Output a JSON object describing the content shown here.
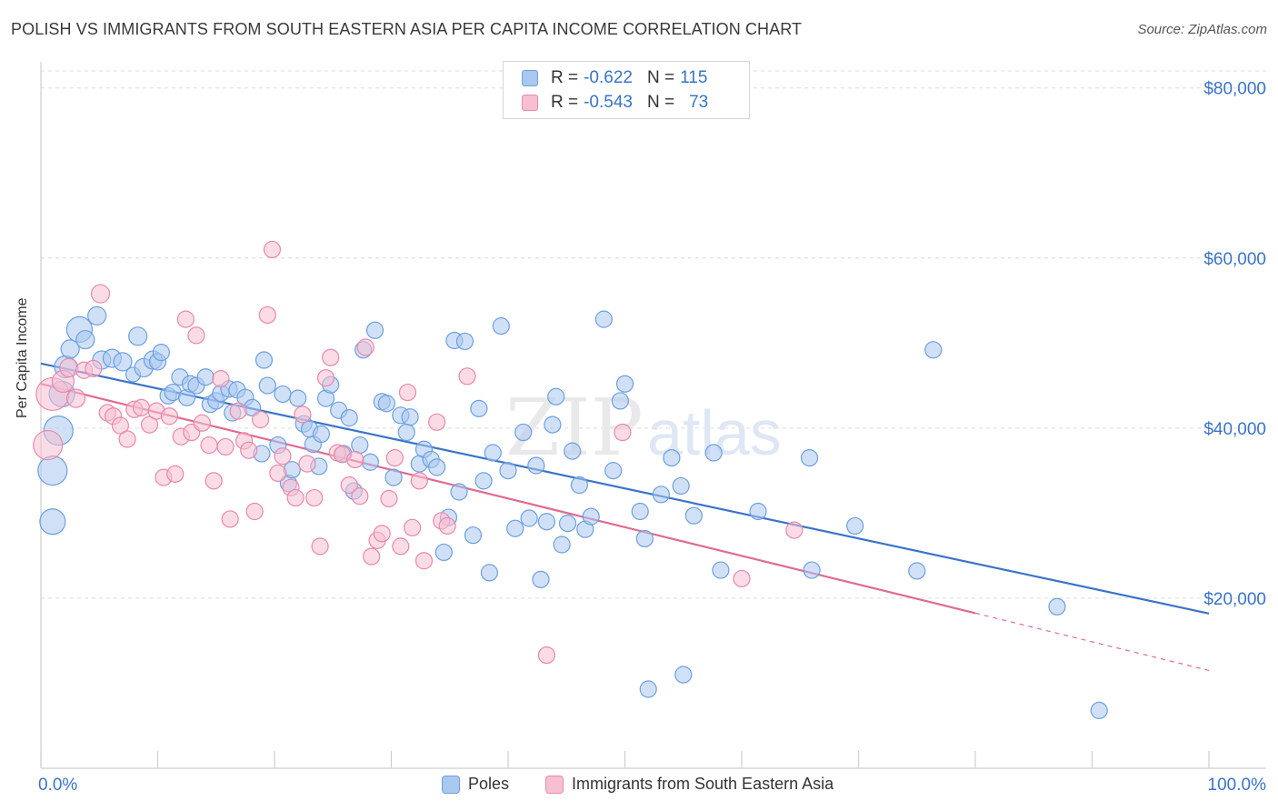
{
  "header": {
    "title": "POLISH VS IMMIGRANTS FROM SOUTH EASTERN ASIA PER CAPITA INCOME CORRELATION CHART",
    "source": "Source: ZipAtlas.com"
  },
  "watermark": {
    "text_a": "ZIP",
    "text_b": "atlas"
  },
  "legend_top": {
    "rows": [
      {
        "r_label": "R =",
        "r_value": "-0.622",
        "n_label": "N =",
        "n_value": "115",
        "color": "#a9c8f0",
        "border": "#6e9fe0"
      },
      {
        "r_label": "R =",
        "r_value": "-0.543",
        "n_label": "N =",
        "n_value": "73",
        "color": "#f7bfd1",
        "border": "#e889a9"
      }
    ]
  },
  "legend_bottom": {
    "items": [
      {
        "label": "Poles",
        "color": "#a9c8f0",
        "border": "#6e9fe0"
      },
      {
        "label": "Immigrants from South Eastern Asia",
        "color": "#f7bfd1",
        "border": "#e889a9"
      }
    ]
  },
  "chart_data": {
    "type": "scatter",
    "title": "POLISH VS IMMIGRANTS FROM SOUTH EASTERN ASIA PER CAPITA INCOME CORRELATION CHART",
    "xlabel": "",
    "ylabel": "Per Capita Income",
    "x_tick_labels": [
      "0.0%",
      "100.0%"
    ],
    "y_tick_labels": [
      "$20,000",
      "$40,000",
      "$60,000",
      "$80,000"
    ],
    "y_ticks": [
      20000,
      40000,
      60000,
      80000
    ],
    "xlim": [
      0,
      100
    ],
    "ylim": [
      0,
      82000
    ],
    "grid": "horizontal dashed",
    "legend": "top-center",
    "colors": {
      "poles": "#3a74c8",
      "asia": "#e06a93",
      "axis_label": "#3a74c8"
    },
    "series": [
      {
        "name": "Poles",
        "color": "#6e9fe0",
        "trend": {
          "x0": 0,
          "y0": 47600,
          "x1": 100,
          "y1": 18200,
          "dashed_from": null
        },
        "points": [
          [
            1.0,
            29000,
            14
          ],
          [
            1.0,
            35000,
            16
          ],
          [
            1.5,
            39700,
            16
          ],
          [
            1.8,
            44000,
            14
          ],
          [
            2.1,
            47200,
            12
          ],
          [
            2.5,
            49300,
            10
          ],
          [
            3.3,
            51600,
            14
          ],
          [
            3.8,
            50400,
            10
          ],
          [
            4.8,
            53200,
            10
          ],
          [
            5.2,
            48000,
            10
          ],
          [
            6.1,
            48200,
            10
          ],
          [
            7.0,
            47800,
            10
          ],
          [
            7.9,
            46300,
            8
          ],
          [
            8.3,
            50800,
            10
          ],
          [
            8.8,
            47100,
            10
          ],
          [
            9.6,
            48000,
            10
          ],
          [
            10.0,
            47800,
            9
          ],
          [
            10.3,
            48900,
            9
          ],
          [
            10.9,
            43800,
            9
          ],
          [
            11.3,
            44200,
            9
          ],
          [
            11.9,
            46000,
            9
          ],
          [
            12.5,
            43600,
            9
          ],
          [
            12.8,
            45200,
            9
          ],
          [
            13.3,
            45000,
            9
          ],
          [
            14.1,
            46000,
            9
          ],
          [
            14.5,
            42800,
            9
          ],
          [
            15.0,
            43200,
            9
          ],
          [
            15.4,
            44100,
            9
          ],
          [
            16.1,
            44600,
            9
          ],
          [
            16.4,
            41800,
            9
          ],
          [
            16.8,
            44500,
            9
          ],
          [
            17.5,
            43600,
            9
          ],
          [
            18.1,
            42400,
            9
          ],
          [
            18.9,
            37000,
            9
          ],
          [
            19.1,
            48000,
            9
          ],
          [
            19.4,
            45000,
            9
          ],
          [
            20.3,
            38000,
            9
          ],
          [
            20.7,
            44000,
            9
          ],
          [
            21.2,
            33500,
            9
          ],
          [
            21.5,
            35100,
            9
          ],
          [
            22.0,
            43500,
            9
          ],
          [
            22.5,
            40500,
            9
          ],
          [
            23.0,
            39900,
            9
          ],
          [
            23.3,
            38100,
            9
          ],
          [
            23.8,
            35500,
            9
          ],
          [
            24.0,
            39300,
            9
          ],
          [
            24.4,
            43500,
            9
          ],
          [
            24.8,
            45100,
            9
          ],
          [
            25.5,
            42100,
            9
          ],
          [
            25.9,
            37000,
            9
          ],
          [
            26.4,
            41200,
            9
          ],
          [
            26.8,
            32600,
            9
          ],
          [
            27.3,
            38000,
            9
          ],
          [
            27.6,
            49200,
            9
          ],
          [
            28.2,
            36000,
            9
          ],
          [
            28.6,
            51500,
            9
          ],
          [
            29.2,
            43100,
            9
          ],
          [
            29.6,
            42900,
            9
          ],
          [
            30.2,
            34200,
            9
          ],
          [
            30.8,
            41500,
            9
          ],
          [
            31.3,
            39500,
            9
          ],
          [
            31.6,
            41300,
            9
          ],
          [
            32.4,
            35800,
            9
          ],
          [
            32.8,
            37500,
            9
          ],
          [
            33.4,
            36300,
            9
          ],
          [
            33.9,
            35400,
            9
          ],
          [
            34.5,
            25400,
            9
          ],
          [
            34.9,
            29500,
            9
          ],
          [
            35.4,
            50300,
            9
          ],
          [
            35.8,
            32500,
            9
          ],
          [
            36.3,
            50200,
            9
          ],
          [
            37.0,
            27400,
            9
          ],
          [
            37.5,
            42300,
            9
          ],
          [
            37.9,
            33800,
            9
          ],
          [
            38.4,
            23000,
            9
          ],
          [
            38.7,
            37100,
            9
          ],
          [
            39.4,
            52000,
            9
          ],
          [
            40.0,
            35000,
            9
          ],
          [
            40.6,
            28200,
            9
          ],
          [
            41.3,
            39500,
            9
          ],
          [
            41.8,
            29400,
            9
          ],
          [
            42.4,
            35600,
            9
          ],
          [
            42.8,
            22200,
            9
          ],
          [
            43.3,
            29000,
            9
          ],
          [
            43.8,
            40400,
            9
          ],
          [
            44.1,
            43700,
            9
          ],
          [
            44.6,
            26300,
            9
          ],
          [
            45.1,
            28800,
            9
          ],
          [
            45.5,
            37300,
            9
          ],
          [
            46.1,
            33300,
            9
          ],
          [
            46.6,
            28100,
            9
          ],
          [
            47.1,
            29600,
            9
          ],
          [
            48.2,
            52800,
            9
          ],
          [
            49.0,
            35000,
            9
          ],
          [
            49.6,
            43200,
            9
          ],
          [
            50.0,
            45200,
            9
          ],
          [
            51.3,
            30200,
            9
          ],
          [
            51.7,
            27000,
            9
          ],
          [
            53.1,
            32200,
            9
          ],
          [
            54.0,
            36500,
            9
          ],
          [
            54.8,
            33200,
            9
          ],
          [
            55.0,
            11000,
            9
          ],
          [
            55.9,
            29700,
            9
          ],
          [
            57.6,
            37100,
            9
          ],
          [
            58.2,
            23300,
            9
          ],
          [
            61.4,
            30200,
            9
          ],
          [
            65.8,
            36500,
            9
          ],
          [
            66.0,
            23300,
            9
          ],
          [
            69.7,
            28500,
            9
          ],
          [
            75.0,
            23200,
            9
          ],
          [
            76.4,
            49200,
            9
          ],
          [
            87.0,
            19000,
            9
          ],
          [
            90.6,
            6800,
            9
          ],
          [
            52.0,
            9300,
            9
          ],
          [
            75.5,
            22000,
            0
          ]
        ]
      },
      {
        "name": "Immigrants from South Eastern Asia",
        "color": "#e889a9",
        "trend": {
          "x0": 0,
          "y0": 45200,
          "x1": 100,
          "y1": 11500,
          "dashed_from": 80
        },
        "points": [
          [
            0.6,
            38000,
            16
          ],
          [
            1.0,
            44000,
            18
          ],
          [
            1.9,
            45500,
            12
          ],
          [
            2.4,
            47100,
            10
          ],
          [
            3.0,
            43500,
            10
          ],
          [
            3.7,
            46800,
            9
          ],
          [
            4.5,
            47000,
            9
          ],
          [
            5.1,
            55800,
            10
          ],
          [
            5.7,
            41800,
            9
          ],
          [
            6.2,
            41400,
            9
          ],
          [
            6.8,
            40300,
            9
          ],
          [
            7.4,
            38700,
            9
          ],
          [
            8.0,
            42200,
            9
          ],
          [
            8.6,
            42400,
            9
          ],
          [
            9.3,
            40400,
            9
          ],
          [
            9.9,
            42000,
            9
          ],
          [
            10.5,
            34200,
            9
          ],
          [
            11.0,
            41400,
            9
          ],
          [
            11.5,
            34600,
            9
          ],
          [
            12.0,
            39000,
            9
          ],
          [
            12.4,
            52800,
            9
          ],
          [
            12.9,
            39500,
            9
          ],
          [
            13.3,
            50900,
            9
          ],
          [
            13.8,
            40600,
            9
          ],
          [
            14.4,
            38000,
            9
          ],
          [
            14.8,
            33800,
            9
          ],
          [
            15.4,
            45800,
            9
          ],
          [
            15.8,
            37800,
            9
          ],
          [
            16.2,
            29300,
            9
          ],
          [
            16.9,
            42000,
            9
          ],
          [
            17.4,
            38500,
            9
          ],
          [
            17.8,
            37400,
            9
          ],
          [
            18.3,
            30200,
            9
          ],
          [
            18.8,
            41000,
            9
          ],
          [
            19.4,
            53300,
            9
          ],
          [
            19.8,
            61000,
            9
          ],
          [
            20.3,
            34700,
            9
          ],
          [
            20.7,
            36700,
            9
          ],
          [
            21.4,
            33000,
            9
          ],
          [
            21.8,
            31800,
            9
          ],
          [
            22.4,
            41600,
            9
          ],
          [
            22.8,
            35800,
            9
          ],
          [
            23.4,
            31800,
            9
          ],
          [
            23.9,
            26100,
            9
          ],
          [
            24.4,
            45900,
            9
          ],
          [
            24.8,
            48300,
            9
          ],
          [
            25.4,
            37100,
            9
          ],
          [
            25.8,
            36900,
            9
          ],
          [
            26.4,
            33300,
            9
          ],
          [
            26.9,
            36300,
            9
          ],
          [
            27.3,
            32000,
            9
          ],
          [
            27.8,
            49500,
            9
          ],
          [
            28.3,
            24900,
            9
          ],
          [
            28.8,
            26800,
            9
          ],
          [
            29.2,
            27600,
            9
          ],
          [
            29.8,
            31700,
            9
          ],
          [
            30.3,
            36500,
            9
          ],
          [
            30.8,
            26100,
            9
          ],
          [
            31.4,
            44200,
            9
          ],
          [
            31.8,
            28300,
            9
          ],
          [
            32.4,
            33800,
            9
          ],
          [
            32.8,
            24400,
            9
          ],
          [
            33.9,
            40700,
            9
          ],
          [
            34.3,
            29100,
            9
          ],
          [
            34.8,
            28500,
            9
          ],
          [
            36.5,
            46100,
            9
          ],
          [
            43.3,
            13300,
            9
          ],
          [
            49.8,
            39500,
            9
          ],
          [
            60.0,
            22300,
            9
          ],
          [
            64.5,
            28000,
            9
          ],
          [
            23.5,
            48600,
            0
          ],
          [
            26.3,
            36800,
            0
          ],
          [
            27.5,
            41800,
            0
          ]
        ]
      }
    ]
  }
}
